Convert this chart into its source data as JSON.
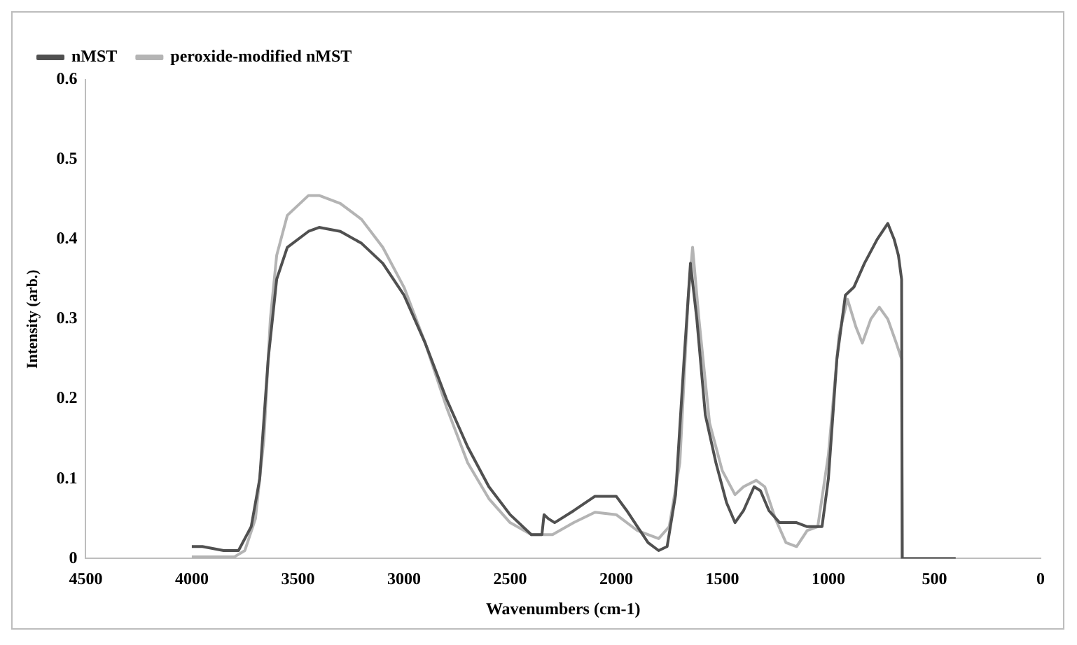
{
  "chart_data": {
    "type": "line",
    "xlabel": "Wavenumbers (cm-1)",
    "ylabel": "Intensity (arb.)",
    "xlim": [
      4500,
      0
    ],
    "xticks": [
      4500,
      4000,
      3500,
      3000,
      2500,
      2000,
      1500,
      1000,
      500,
      0
    ],
    "ylim": [
      0,
      0.6
    ],
    "yticks": [
      0,
      0.1,
      0.2,
      0.3,
      0.4,
      0.5,
      0.6
    ],
    "grid": false,
    "legend": "top",
    "marker": "none",
    "line_style": "solid",
    "series": [
      {
        "name": "nMST",
        "color": "#505050",
        "x": [
          4000,
          3950,
          3850,
          3780,
          3720,
          3680,
          3640,
          3600,
          3550,
          3450,
          3400,
          3300,
          3200,
          3100,
          3000,
          2900,
          2800,
          2700,
          2600,
          2500,
          2400,
          2350,
          2340,
          2320,
          2290,
          2200,
          2100,
          2000,
          1950,
          1900,
          1850,
          1800,
          1760,
          1720,
          1680,
          1650,
          1620,
          1580,
          1530,
          1480,
          1440,
          1400,
          1350,
          1320,
          1280,
          1230,
          1150,
          1100,
          1060,
          1030,
          1000,
          960,
          920,
          880,
          830,
          770,
          720,
          690,
          670,
          655,
          652,
          400
        ],
        "values": [
          0.015,
          0.015,
          0.01,
          0.01,
          0.04,
          0.1,
          0.25,
          0.35,
          0.39,
          0.41,
          0.415,
          0.41,
          0.395,
          0.37,
          0.33,
          0.27,
          0.2,
          0.14,
          0.09,
          0.055,
          0.03,
          0.03,
          0.055,
          0.05,
          0.045,
          0.06,
          0.078,
          0.078,
          0.06,
          0.04,
          0.02,
          0.01,
          0.015,
          0.08,
          0.25,
          0.37,
          0.3,
          0.18,
          0.12,
          0.07,
          0.045,
          0.06,
          0.09,
          0.085,
          0.06,
          0.045,
          0.045,
          0.04,
          0.04,
          0.04,
          0.1,
          0.25,
          0.33,
          0.34,
          0.37,
          0.4,
          0.42,
          0.4,
          0.38,
          0.35,
          0,
          0
        ]
      },
      {
        "name": "peroxide-modified nMST",
        "color": "#b4b4b4",
        "x": [
          4000,
          3800,
          3750,
          3700,
          3660,
          3630,
          3600,
          3550,
          3450,
          3400,
          3300,
          3200,
          3100,
          3000,
          2900,
          2800,
          2700,
          2600,
          2500,
          2400,
          2300,
          2200,
          2100,
          2000,
          1900,
          1800,
          1750,
          1700,
          1660,
          1640,
          1610,
          1560,
          1500,
          1440,
          1400,
          1340,
          1300,
          1250,
          1200,
          1150,
          1100,
          1050,
          1000,
          950,
          910,
          870,
          840,
          800,
          760,
          720,
          680,
          655,
          652,
          400
        ],
        "values": [
          0.002,
          0.002,
          0.01,
          0.05,
          0.15,
          0.3,
          0.38,
          0.43,
          0.455,
          0.455,
          0.445,
          0.425,
          0.39,
          0.34,
          0.27,
          0.19,
          0.12,
          0.075,
          0.045,
          0.03,
          0.03,
          0.045,
          0.058,
          0.055,
          0.035,
          0.025,
          0.04,
          0.12,
          0.33,
          0.39,
          0.3,
          0.17,
          0.11,
          0.08,
          0.09,
          0.098,
          0.09,
          0.05,
          0.02,
          0.015,
          0.035,
          0.04,
          0.13,
          0.28,
          0.325,
          0.29,
          0.27,
          0.3,
          0.315,
          0.3,
          0.27,
          0.25,
          0,
          0
        ]
      }
    ]
  }
}
